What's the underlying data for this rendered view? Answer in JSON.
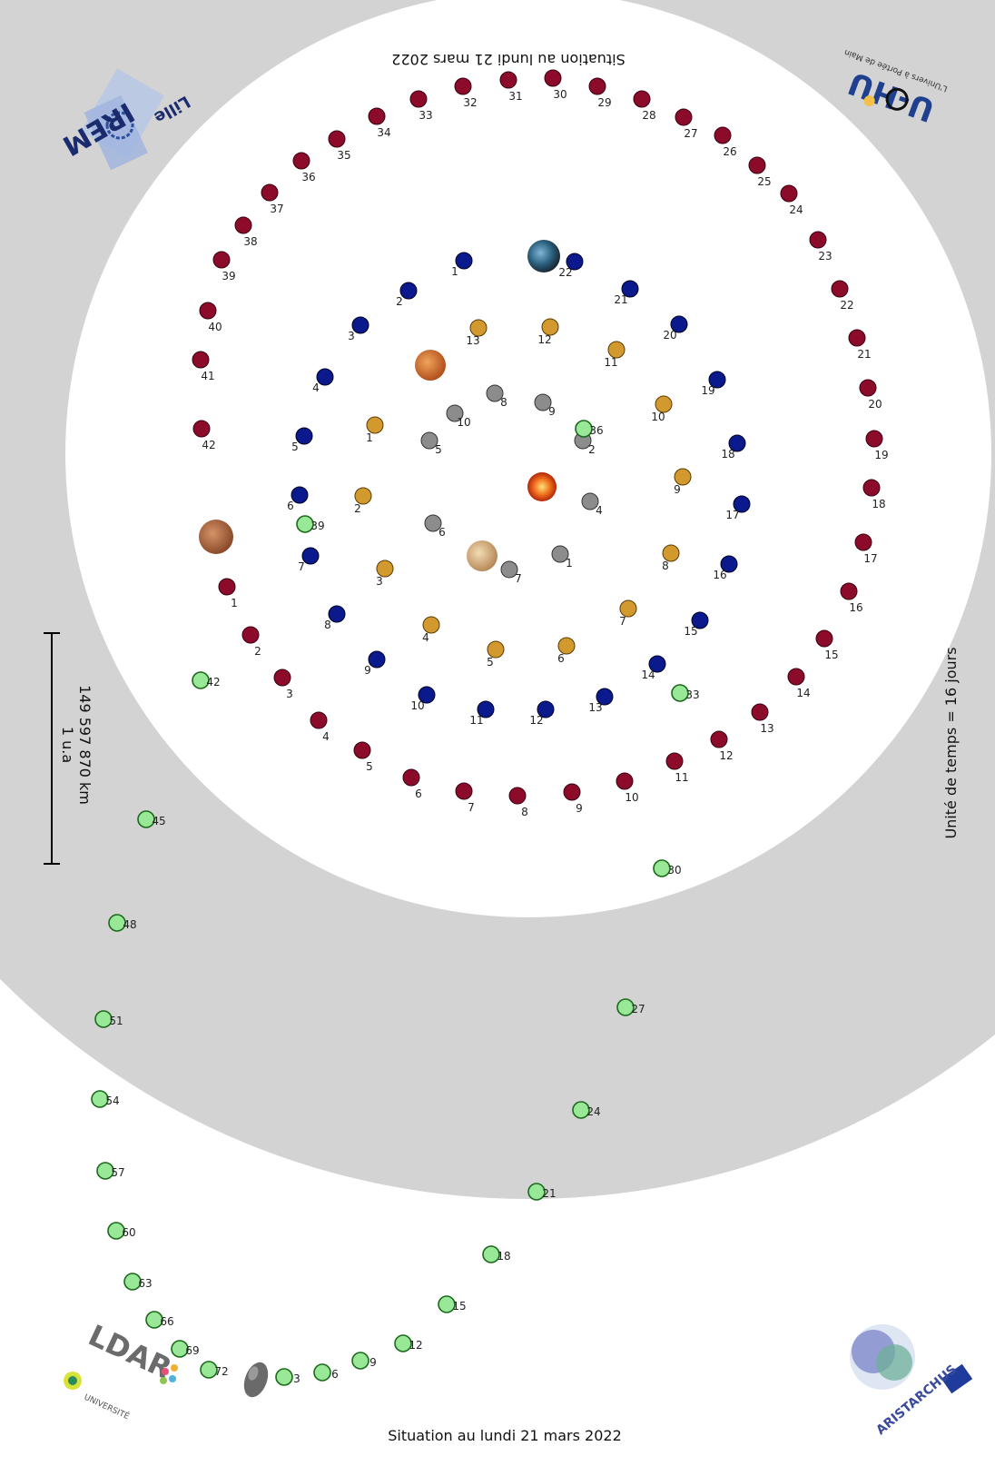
{
  "caption_bottom": "Situation au lundi 21 mars 2022",
  "caption_top": "Situation au lundi 21 mars 2022",
  "time_unit": "Unité de temps = 16 jours",
  "scale_au": "1 u.a",
  "scale_km": "149 597 870 km",
  "logos": {
    "irem_main": "IREM",
    "irem_city": "Lille",
    "uhu": "U-HU",
    "uhu_sub": "L'Univers à Portée de Main",
    "ldar": "LDAR",
    "univ": "UNIVERSITÉ",
    "aristarchus": "ARISTARCHUS"
  },
  "bodies": [
    "Soleil",
    "Mercure",
    "Vénus",
    "Terre",
    "Mars",
    "Comète"
  ],
  "colors": {
    "outer_band": "#d3d3d3",
    "inner_disc": "#ffffff",
    "mercury_dots": "#8c8c8c",
    "venus_dots": "#d29a2e",
    "earth_dots": "#0a1a8c",
    "mars_dots": "#8c0a2a",
    "comet_dots": "#98e898"
  },
  "mercury_positions": [
    {
      "n": 1
    },
    {
      "n": 2
    },
    {
      "n": 4
    },
    {
      "n": 5
    },
    {
      "n": 6
    },
    {
      "n": 7
    },
    {
      "n": 8
    },
    {
      "n": 9
    },
    {
      "n": 10
    }
  ],
  "venus_positions": [
    {
      "n": 1
    },
    {
      "n": 2
    },
    {
      "n": 3
    },
    {
      "n": 4
    },
    {
      "n": 5
    },
    {
      "n": 6
    },
    {
      "n": 7
    },
    {
      "n": 8
    },
    {
      "n": 9
    },
    {
      "n": 10
    },
    {
      "n": 11
    },
    {
      "n": 12
    },
    {
      "n": 13
    }
  ],
  "earth_positions": [
    {
      "n": 1
    },
    {
      "n": 2
    },
    {
      "n": 3
    },
    {
      "n": 4
    },
    {
      "n": 5
    },
    {
      "n": 6
    },
    {
      "n": 7
    },
    {
      "n": 8
    },
    {
      "n": 9
    },
    {
      "n": 10
    },
    {
      "n": 11
    },
    {
      "n": 12
    },
    {
      "n": 13
    },
    {
      "n": 14
    },
    {
      "n": 15
    },
    {
      "n": 16
    },
    {
      "n": 17
    },
    {
      "n": 18
    },
    {
      "n": 19
    },
    {
      "n": 20
    },
    {
      "n": 21
    },
    {
      "n": 22
    }
  ],
  "mars_positions": [
    {
      "n": 1
    },
    {
      "n": 2
    },
    {
      "n": 3
    },
    {
      "n": 4
    },
    {
      "n": 5
    },
    {
      "n": 6
    },
    {
      "n": 7
    },
    {
      "n": 8
    },
    {
      "n": 9
    },
    {
      "n": 10
    },
    {
      "n": 11
    },
    {
      "n": 12
    },
    {
      "n": 13
    },
    {
      "n": 14
    },
    {
      "n": 15
    },
    {
      "n": 16
    },
    {
      "n": 17
    },
    {
      "n": 18
    },
    {
      "n": 19
    },
    {
      "n": 20
    },
    {
      "n": 21
    },
    {
      "n": 22
    },
    {
      "n": 23
    },
    {
      "n": 24
    },
    {
      "n": 25
    },
    {
      "n": 26
    },
    {
      "n": 27
    },
    {
      "n": 28
    },
    {
      "n": 29
    },
    {
      "n": 30
    },
    {
      "n": 31
    },
    {
      "n": 32
    },
    {
      "n": 33
    },
    {
      "n": 34
    },
    {
      "n": 35
    },
    {
      "n": 36
    },
    {
      "n": 37
    },
    {
      "n": 38
    },
    {
      "n": 39
    },
    {
      "n": 40
    },
    {
      "n": 41
    },
    {
      "n": 42
    }
  ],
  "comet_positions": [
    {
      "n": 3
    },
    {
      "n": 6
    },
    {
      "n": 9
    },
    {
      "n": 12
    },
    {
      "n": 15
    },
    {
      "n": 18
    },
    {
      "n": 21
    },
    {
      "n": 24
    },
    {
      "n": 27
    },
    {
      "n": 30
    },
    {
      "n": 33
    },
    {
      "n": 36
    },
    {
      "n": 39
    },
    {
      "n": 42
    },
    {
      "n": 45
    },
    {
      "n": 48
    },
    {
      "n": 51
    },
    {
      "n": 54
    },
    {
      "n": 57
    },
    {
      "n": 60
    },
    {
      "n": 63
    },
    {
      "n": 66
    },
    {
      "n": 69
    },
    {
      "n": 72
    }
  ]
}
